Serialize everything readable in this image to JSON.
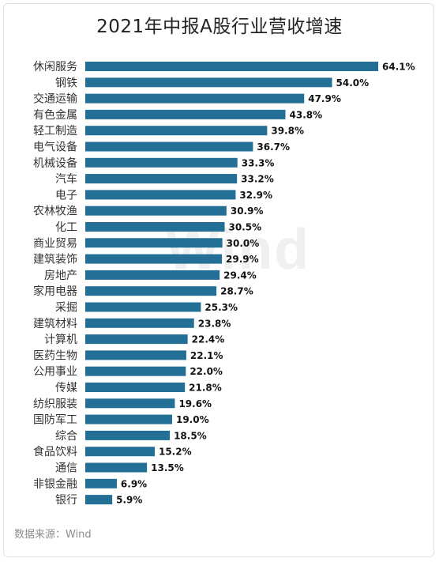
{
  "title": "2021年中报A股行业营收增速",
  "watermark": "Wind",
  "source": "数据来源：Wind",
  "colors": {
    "bar": "#236f96",
    "label": "#333333",
    "value": "#111111"
  },
  "chart_data": {
    "type": "bar",
    "orientation": "horizontal",
    "title": "2021年中报A股行业营收增速",
    "value_suffix": "%",
    "categories": [
      "休闲服务",
      "钢铁",
      "交通运输",
      "有色金属",
      "轻工制造",
      "电气设备",
      "机械设备",
      "汽车",
      "电子",
      "农林牧渔",
      "化工",
      "商业贸易",
      "建筑装饰",
      "房地产",
      "家用电器",
      "采掘",
      "建筑材料",
      "计算机",
      "医药生物",
      "公用事业",
      "传媒",
      "纺织服装",
      "国防军工",
      "综合",
      "食品饮料",
      "通信",
      "非银金融",
      "银行"
    ],
    "values": [
      64.1,
      54.0,
      47.9,
      43.8,
      39.8,
      36.7,
      33.3,
      33.2,
      32.9,
      30.9,
      30.5,
      30.0,
      29.9,
      29.4,
      28.7,
      25.3,
      23.8,
      22.4,
      22.1,
      22.0,
      21.8,
      19.6,
      19.0,
      18.5,
      15.2,
      13.5,
      6.9,
      5.9
    ],
    "grid": false,
    "legend": "none"
  }
}
